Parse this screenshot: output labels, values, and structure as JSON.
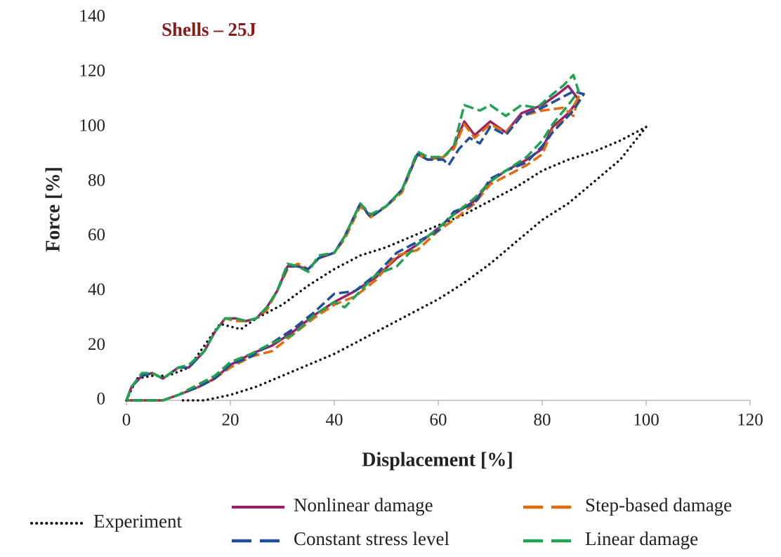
{
  "chart_data": {
    "type": "line",
    "title": "Shells – 25J",
    "title_color": "#8b1a1a",
    "x_label": "Displacement [%]",
    "y_label": "Force [%]",
    "xlim": [
      0,
      120
    ],
    "ylim": [
      0,
      140
    ],
    "xticks": [
      0,
      20,
      40,
      60,
      80,
      100,
      120
    ],
    "yticks": [
      0,
      20,
      40,
      60,
      80,
      100,
      120,
      140
    ],
    "series": [
      {
        "name": "Experiment",
        "color": "#111111",
        "style": "dotted",
        "x": [
          0,
          2,
          5,
          8,
          12,
          15,
          18,
          22,
          25,
          30,
          35,
          40,
          45,
          50,
          55,
          60,
          65,
          70,
          75,
          80,
          85,
          90,
          95,
          100,
          95,
          90,
          85,
          80,
          75,
          70,
          65,
          60,
          55,
          50,
          45,
          40,
          35,
          30,
          25,
          20,
          15,
          10
        ],
        "values": [
          0,
          8,
          9,
          9,
          12,
          20,
          28,
          26,
          30,
          35,
          42,
          48,
          53,
          56,
          60,
          64,
          68,
          73,
          78,
          84,
          88,
          91,
          95,
          100,
          88,
          80,
          72,
          66,
          58,
          50,
          43,
          37,
          32,
          27,
          22,
          17,
          13,
          9,
          5,
          2,
          0,
          0
        ]
      },
      {
        "name": "Nonlinear damage",
        "color": "#9e1f63",
        "style": "solid",
        "x": [
          0,
          1,
          3,
          5,
          7,
          10,
          12,
          15,
          17,
          19,
          21,
          23,
          25,
          27,
          29,
          31,
          33,
          35,
          37,
          40,
          42,
          45,
          47,
          50,
          53,
          56,
          58,
          61,
          63,
          65,
          67,
          70,
          73,
          76,
          80,
          83,
          85,
          87,
          85,
          82,
          80,
          77,
          73,
          70,
          67,
          63,
          60,
          56,
          52,
          48,
          44,
          40,
          36,
          32,
          28,
          24,
          20,
          17,
          14,
          10,
          7,
          0
        ],
        "values": [
          0,
          5,
          9,
          10,
          8,
          12,
          12,
          18,
          25,
          30,
          30,
          29,
          30,
          34,
          40,
          49,
          49,
          48,
          52,
          54,
          60,
          72,
          67,
          71,
          77,
          90,
          88,
          89,
          93,
          102,
          97,
          102,
          98,
          105,
          108,
          112,
          115,
          110,
          105,
          100,
          92,
          88,
          84,
          80,
          73,
          68,
          63,
          57,
          52,
          45,
          40,
          36,
          31,
          25,
          20,
          17,
          13,
          8,
          5,
          2,
          0,
          0
        ]
      },
      {
        "name": "Step-based damage",
        "color": "#e36c0a",
        "style": "dashed",
        "x": [
          0,
          1,
          3,
          5,
          7,
          10,
          12,
          15,
          17,
          19,
          21,
          23,
          25,
          27,
          29,
          31,
          33,
          35,
          37,
          40,
          42,
          45,
          47,
          50,
          53,
          56,
          58,
          61,
          63,
          65,
          67,
          70,
          73,
          76,
          80,
          84,
          86,
          87,
          85,
          82,
          80,
          77,
          73,
          70,
          67,
          63,
          60,
          56,
          52,
          48,
          44,
          40,
          36,
          32,
          28,
          24,
          20,
          17,
          14,
          10,
          7,
          0
        ],
        "values": [
          0,
          5,
          9,
          10,
          8,
          12,
          12,
          18,
          25,
          30,
          29,
          29,
          30,
          33,
          40,
          48,
          50,
          48,
          52,
          54,
          59,
          71,
          67,
          71,
          76,
          90,
          88,
          89,
          92,
          101,
          96,
          101,
          98,
          104,
          106,
          107,
          104,
          111,
          104,
          99,
          90,
          86,
          82,
          79,
          72,
          66,
          62,
          55,
          53,
          44,
          38,
          35,
          30,
          24,
          18,
          16,
          12,
          8,
          5,
          2,
          0,
          0
        ]
      },
      {
        "name": "Constant stress level",
        "color": "#1f4e9a",
        "style": "dashed",
        "x": [
          0,
          1,
          3,
          5,
          7,
          10,
          12,
          15,
          17,
          19,
          21,
          23,
          25,
          27,
          29,
          31,
          33,
          35,
          37,
          40,
          42,
          45,
          47,
          50,
          53,
          56,
          58,
          61,
          62,
          64,
          66,
          68,
          70,
          73,
          76,
          80,
          83,
          86,
          88,
          86,
          82,
          80,
          77,
          73,
          70,
          67,
          63,
          60,
          56,
          52,
          48,
          44,
          40,
          36,
          32,
          28,
          24,
          20,
          17,
          14,
          10,
          7,
          0
        ],
        "values": [
          0,
          5,
          9,
          10,
          8,
          12,
          12,
          18,
          25,
          30,
          30,
          29,
          30,
          34,
          40,
          49,
          49,
          48,
          52,
          54,
          60,
          72,
          67,
          71,
          77,
          90,
          88,
          88,
          86,
          92,
          96,
          94,
          100,
          97,
          104,
          107,
          110,
          113,
          112,
          106,
          98,
          93,
          87,
          84,
          81,
          72,
          69,
          62,
          58,
          54,
          46,
          40,
          39,
          32,
          26,
          21,
          16,
          13,
          8,
          5,
          2,
          0,
          0
        ]
      },
      {
        "name": "Linear damage",
        "color": "#21a152",
        "style": "dashed",
        "x": [
          0,
          1,
          3,
          5,
          7,
          10,
          12,
          15,
          17,
          19,
          21,
          23,
          25,
          27,
          29,
          31,
          33,
          35,
          37,
          40,
          42,
          45,
          47,
          50,
          53,
          56,
          58,
          61,
          63,
          65,
          68,
          70,
          73,
          76,
          79,
          82,
          84,
          86,
          87,
          85,
          82,
          80,
          77,
          73,
          70,
          67,
          63,
          60,
          56,
          52,
          48,
          44,
          42,
          40,
          36,
          32,
          28,
          24,
          20,
          17,
          14,
          10,
          7,
          0
        ],
        "values": [
          0,
          5,
          10,
          10,
          8,
          12,
          13,
          18,
          25,
          30,
          30,
          29,
          30,
          34,
          40,
          50,
          49,
          47,
          53,
          54,
          60,
          72,
          68,
          71,
          77,
          91,
          89,
          89,
          93,
          108,
          106,
          108,
          104,
          108,
          107,
          112,
          115,
          119,
          113,
          108,
          101,
          95,
          89,
          84,
          80,
          74,
          68,
          63,
          57,
          49,
          46,
          38,
          34,
          36,
          31,
          24,
          21,
          17,
          14,
          9,
          6,
          2,
          0,
          0
        ]
      }
    ]
  }
}
